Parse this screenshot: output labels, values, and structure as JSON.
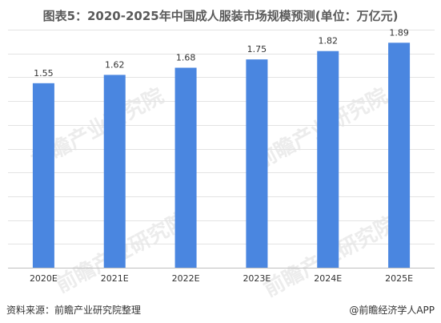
{
  "chart_data": {
    "type": "bar",
    "title": "图表5：2020-2025年中国成人服装市场规模预测(单位：万亿元)",
    "categories": [
      "2020E",
      "2021E",
      "2022E",
      "2023E",
      "2024E",
      "2025E"
    ],
    "values": [
      1.55,
      1.62,
      1.68,
      1.75,
      1.82,
      1.89
    ],
    "data_labels": [
      "1.55",
      "1.62",
      "1.68",
      "1.75",
      "1.82",
      "1.89"
    ],
    "ylim": [
      0,
      2.0
    ],
    "grid": true,
    "legend": "none",
    "bar_color": "#4a86e0"
  },
  "footer": {
    "source": "资料来源：前瞻产业研究院整理",
    "brand": "@前瞻经济学人APP"
  },
  "watermark": "前瞻产业研究院"
}
